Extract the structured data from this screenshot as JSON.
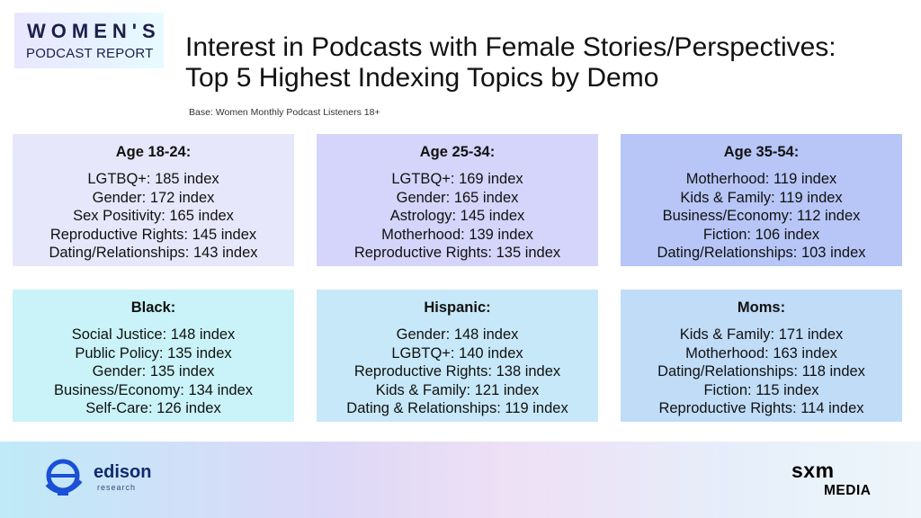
{
  "logo": {
    "top": "WOMEN'S",
    "bottom": "PODCAST REPORT"
  },
  "title": {
    "line1": "Interest in Podcasts with Female Stories/Perspectives:",
    "line2": "Top 5 Highest Indexing Topics by Demo"
  },
  "base": "Base: Women Monthly Podcast Listeners 18+",
  "cards": [
    {
      "heading": "Age 18-24:",
      "lines": [
        "LGTBQ+: 185 index",
        "Gender: 172 index",
        "Sex Positivity: 165 index",
        "Reproductive Rights: 145 index",
        "Dating/Relationships: 143 index"
      ]
    },
    {
      "heading": "Age 25-34:",
      "lines": [
        "LGTBQ+: 169 index",
        "Gender: 165 index",
        "Astrology: 145 index",
        "Motherhood: 139 index",
        "Reproductive Rights: 135 index"
      ]
    },
    {
      "heading": "Age 35-54:",
      "lines": [
        "Motherhood: 119 index",
        "Kids & Family: 119 index",
        "Business/Economy: 112 index",
        "Fiction: 106 index",
        "Dating/Relationships: 103 index"
      ]
    },
    {
      "heading": "Black:",
      "lines": [
        "Social Justice: 148 index",
        "Public Policy: 135 index",
        "Gender: 135 index",
        "Business/Economy: 134 index",
        "Self-Care: 126 index"
      ]
    },
    {
      "heading": "Hispanic:",
      "lines": [
        "Gender: 148 index",
        "LGBTQ+: 140 index",
        "Reproductive Rights: 138 index",
        "Kids & Family: 121 index",
        "Dating & Relationships: 119 index"
      ]
    },
    {
      "heading": "Moms:",
      "lines": [
        "Kids & Family: 171 index",
        "Motherhood: 163 index",
        "Dating/Relationships: 118 index",
        "Fiction: 115 index",
        "Reproductive Rights: 114 index"
      ]
    }
  ],
  "footer": {
    "edison_name": "edison",
    "edison_sub": "research",
    "sxm": "sxm",
    "media": "MEDIA"
  },
  "colors": {
    "card_age_18_24": "#e7e7fb",
    "card_age_25_34": "#d5d4fa",
    "card_age_35_54": "#b7c6f7",
    "card_black": "#c9f3f8",
    "card_hispanic": "#c7e8f8",
    "card_moms": "#c0dcf7",
    "edison_blue": "#1a4fd6"
  }
}
